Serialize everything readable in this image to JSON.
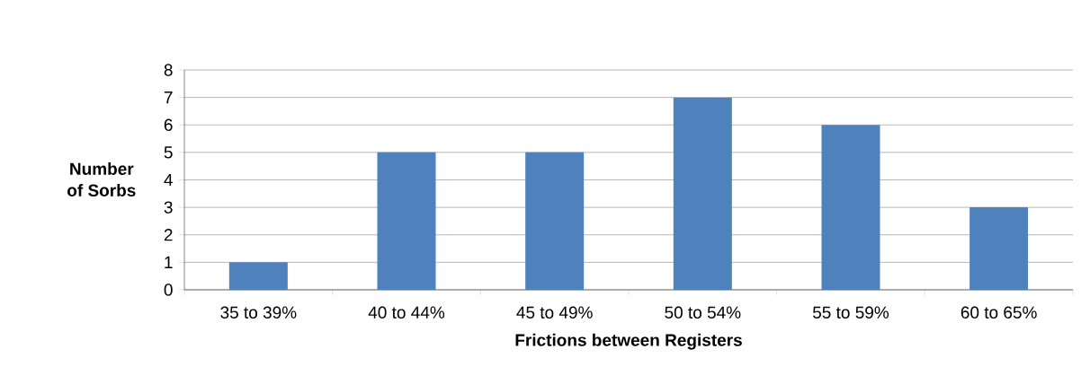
{
  "chart_data": {
    "type": "bar",
    "xlabel": "Frictions between Registers",
    "ylabel": "Number of Sorbs",
    "categories": [
      "35 to 39%",
      "40 to 44%",
      "45 to 49%",
      "50 to 54%",
      "55 to 59%",
      "60 to 65%"
    ],
    "values": [
      1,
      5,
      5,
      7,
      6,
      3
    ],
    "color": "#4f81bd",
    "ylim": [
      0,
      8
    ],
    "yticks": [
      0,
      1,
      2,
      3,
      4,
      5,
      6,
      7,
      8
    ],
    "grid": "y"
  }
}
